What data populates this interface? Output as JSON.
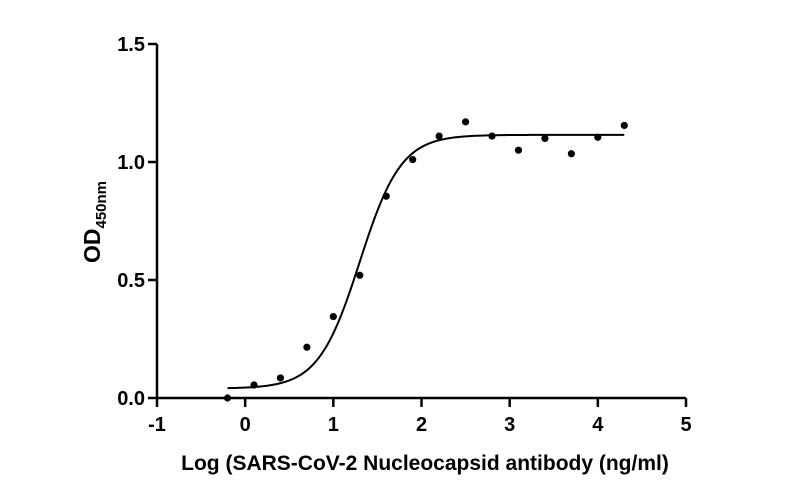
{
  "chart_data": {
    "type": "scatter",
    "title": "",
    "xlabel": "Log (SARS-CoV-2 Nucleocapsid antibody (ng/ml)",
    "ylabel": {
      "main": "OD",
      "subscript": "450nm"
    },
    "xlim": [
      -1,
      5
    ],
    "ylim": [
      0,
      1.5
    ],
    "x_ticks": [
      "-1",
      "0",
      "1",
      "2",
      "3",
      "4",
      "5"
    ],
    "y_ticks": [
      "0.0",
      "0.5",
      "1.0",
      "1.5"
    ],
    "grid": false,
    "legend": "none",
    "series": [
      {
        "x": [
          -0.2,
          0.1,
          0.4,
          0.7,
          1.0,
          1.3,
          1.6,
          1.9,
          2.2,
          2.5,
          2.8,
          3.1,
          3.4,
          3.7,
          4.0,
          4.3
        ],
        "y": [
          0.0,
          0.055,
          0.085,
          0.215,
          0.345,
          0.52,
          0.855,
          1.01,
          1.11,
          1.17,
          1.11,
          1.05,
          1.1,
          1.035,
          1.105,
          1.155
        ]
      }
    ],
    "fit_curve": {
      "model": "4PL sigmoid",
      "bottom": 0.04,
      "top": 1.115,
      "logEC50": 1.3,
      "hill_slope": 1.85,
      "x_range": [
        -0.2,
        4.3
      ]
    }
  }
}
